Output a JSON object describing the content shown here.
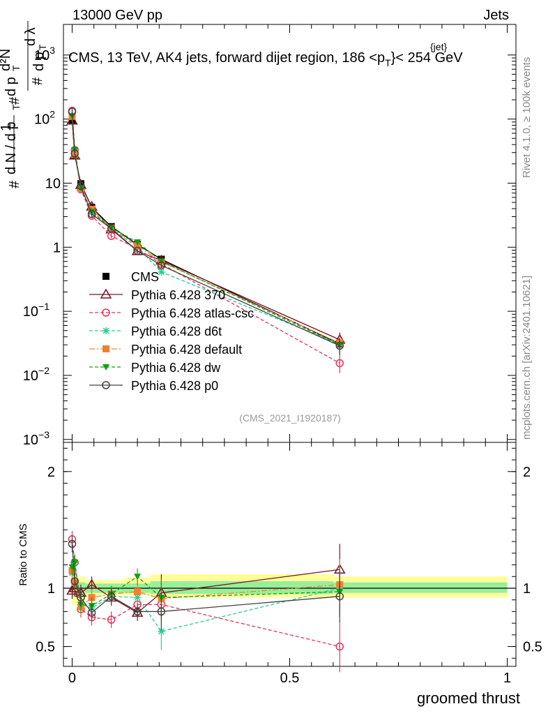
{
  "header": {
    "left": "13000 GeV pp",
    "right": "Jets",
    "plot_title": "CMS, 13 TeV, AK4 jets, forward dijet region, 186 <p",
    "plot_title_sup": "{jet}",
    "plot_title_sub": "T",
    "plot_title_end": "}< 254 GeV",
    "side_right_top": "Rivet 4.1.0, ≥ 100k events",
    "side_right_bottom": "mcplots.cern.ch [arXiv:2401.10621]",
    "analysis_id": "(CMS_2021_I1920187)"
  },
  "chart_data": [
    {
      "type": "line",
      "name": "main-panel",
      "yscale": "log",
      "ylabel": "1/dN/dp_T d²N/dp_T dλ",
      "xlim": [
        -0.02,
        1.02
      ],
      "ylim": [
        0.0009,
        3000
      ],
      "yticks": [
        {
          "v": 0.001,
          "base": "10",
          "exp": "−3"
        },
        {
          "v": 0.01,
          "base": "10",
          "exp": "−2"
        },
        {
          "v": 0.1,
          "base": "10",
          "exp": "−1"
        },
        {
          "v": 1,
          "base": "1",
          "exp": ""
        },
        {
          "v": 10,
          "base": "10",
          "exp": ""
        },
        {
          "v": 100,
          "base": "10",
          "exp": "2"
        },
        {
          "v": 1000,
          "base": "10",
          "exp": "3"
        }
      ],
      "x": [
        0.0,
        0.006,
        0.02,
        0.045,
        0.09,
        0.15,
        0.205,
        0.615
      ],
      "series": [
        {
          "name": "CMS",
          "color": "#000000",
          "marker": "square",
          "dash": "none",
          "values": [
            95,
            27,
            9.8,
            4.2,
            2.1,
            1.1,
            0.65,
            0.031
          ]
        },
        {
          "name": "Pythia 6.428 370",
          "color": "#7a1020",
          "marker": "triangle-open",
          "dash": "none",
          "values": [
            95,
            27,
            9.4,
            4.3,
            1.9,
            0.87,
            0.62,
            0.036
          ]
        },
        {
          "name": "Pythia 6.428 atlas-csc",
          "color": "#e8305a",
          "marker": "circle-open",
          "dash": "5,3",
          "values": [
            135,
            33,
            8.0,
            3.1,
            1.5,
            0.95,
            0.55,
            0.0155
          ]
        },
        {
          "name": "Pythia 6.428 d6t",
          "color": "#20d090",
          "marker": "star",
          "dash": "5,3",
          "values": [
            108,
            33,
            8.4,
            3.5,
            1.95,
            1.0,
            0.41,
            0.031
          ]
        },
        {
          "name": "Pythia 6.428 default",
          "color": "#f08030",
          "marker": "square",
          "dash": "8,3,2,3",
          "values": [
            110,
            28,
            8.2,
            3.9,
            2.0,
            1.06,
            0.59,
            0.032
          ]
        },
        {
          "name": "Pythia 6.428 dw",
          "color": "#10a010",
          "marker": "triangle-down",
          "dash": "5,3",
          "values": [
            112,
            33,
            8.4,
            3.6,
            2.0,
            1.2,
            0.6,
            0.03
          ]
        },
        {
          "name": "Pythia 6.428 p0",
          "color": "#404040",
          "marker": "circle-open",
          "dash": "none",
          "values": [
            130,
            29,
            9.0,
            3.3,
            1.95,
            0.88,
            0.52,
            0.029
          ]
        }
      ]
    },
    {
      "type": "line",
      "name": "ratio-panel",
      "ylabel": "Ratio to CMS",
      "xlabel": "groomed thrust",
      "xlim": [
        -0.02,
        1.02
      ],
      "ylim": [
        0.33,
        2.25
      ],
      "yticks": [
        0.5,
        1,
        2
      ],
      "xticks": [
        0,
        0.5,
        1
      ],
      "xtick_labels": [
        "0",
        "0.5",
        "1"
      ],
      "band_edges": [
        0.0,
        0.004,
        0.012,
        0.03,
        0.06,
        0.12,
        0.18,
        0.23,
        0.6,
        1.0
      ],
      "band_yellow": [
        [
          0.85,
          1.15
        ],
        [
          0.86,
          1.12
        ],
        [
          0.87,
          1.1
        ],
        [
          0.93,
          1.07
        ],
        [
          0.94,
          1.07
        ],
        [
          0.94,
          1.09
        ],
        [
          0.92,
          1.12
        ],
        [
          0.92,
          1.12
        ],
        [
          0.92,
          1.1
        ]
      ],
      "band_green": [
        [
          0.93,
          1.07
        ],
        [
          0.93,
          1.06
        ],
        [
          0.94,
          1.05
        ],
        [
          0.96,
          1.04
        ],
        [
          0.96,
          1.04
        ],
        [
          0.96,
          1.04
        ],
        [
          0.95,
          1.06
        ],
        [
          0.95,
          1.06
        ],
        [
          0.96,
          1.05
        ]
      ],
      "x": [
        0.0,
        0.006,
        0.02,
        0.045,
        0.09,
        0.15,
        0.205,
        0.615
      ],
      "series": [
        {
          "name": "Pythia 6.428 370",
          "values": [
            0.98,
            1.0,
            0.96,
            1.03,
            0.92,
            0.79,
            0.96,
            1.16
          ]
        },
        {
          "name": "Pythia 6.428 atlas-csc",
          "values": [
            1.42,
            1.22,
            0.82,
            0.75,
            0.73,
            0.86,
            0.86,
            0.5
          ]
        },
        {
          "name": "Pythia 6.428 d6t",
          "values": [
            1.13,
            1.22,
            0.86,
            0.83,
            0.93,
            0.92,
            0.63,
            1.0
          ]
        },
        {
          "name": "Pythia 6.428 default",
          "values": [
            1.15,
            1.05,
            0.84,
            0.92,
            0.95,
            0.97,
            0.91,
            1.03
          ]
        },
        {
          "name": "Pythia 6.428 dw",
          "values": [
            1.18,
            1.22,
            0.86,
            0.85,
            0.95,
            1.1,
            0.92,
            0.97
          ]
        },
        {
          "name": "Pythia 6.428 p0",
          "values": [
            1.38,
            1.06,
            0.92,
            0.79,
            0.93,
            0.8,
            0.8,
            0.93
          ]
        }
      ]
    }
  ]
}
